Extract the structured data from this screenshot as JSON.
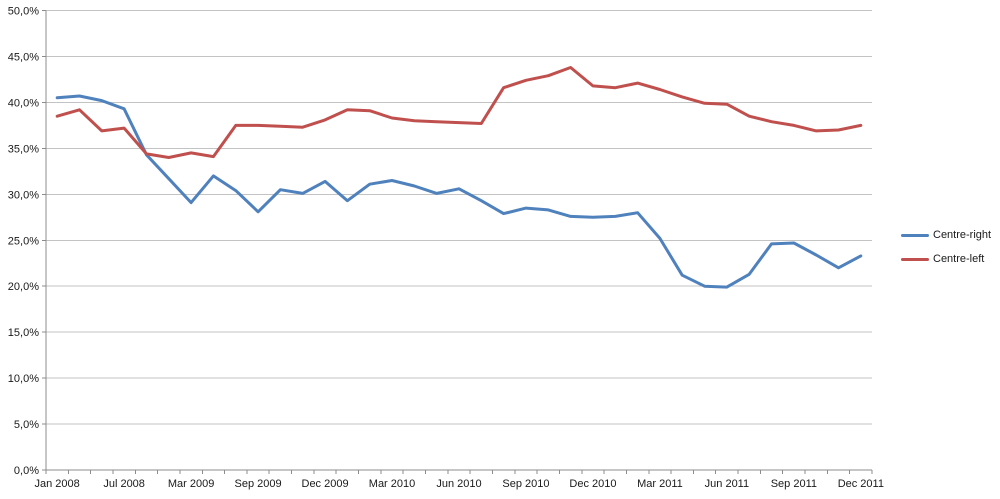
{
  "chart_data": {
    "type": "line",
    "n_points": 37,
    "label_interval": 3,
    "x_tick_labels": [
      "Jan 2008",
      "Jul 2008",
      "Mar 2009",
      "Sep 2009",
      "Dec 2009",
      "Mar 2010",
      "Jun 2010",
      "Sep 2010",
      "Dec 2010",
      "Mar 2011",
      "Jun 2011",
      "Sep 2011",
      "Dec 2011"
    ],
    "y_tick_labels": [
      "0,0%",
      "5,0%",
      "10,0%",
      "15,0%",
      "20,0%",
      "25,0%",
      "30,0%",
      "35,0%",
      "40,0%",
      "45,0%",
      "50,0%"
    ],
    "ylim": [
      0,
      50
    ],
    "y_step": 5,
    "grid": true,
    "legend_position": "right",
    "series": [
      {
        "name": "Centre-right",
        "color": "#4F81BD",
        "values": [
          40.5,
          40.7,
          40.2,
          39.3,
          34.3,
          31.7,
          29.1,
          32.0,
          30.4,
          28.1,
          30.5,
          30.1,
          31.4,
          29.3,
          31.1,
          31.5,
          30.9,
          30.1,
          30.6,
          29.3,
          27.9,
          28.5,
          28.3,
          27.6,
          27.5,
          27.6,
          28.0,
          25.2,
          21.2,
          20.0,
          19.9,
          21.3,
          24.6,
          24.7,
          23.4,
          22.0,
          23.3
        ]
      },
      {
        "name": "Centre-left",
        "color": "#C0504D",
        "values": [
          38.5,
          39.2,
          36.9,
          37.2,
          34.4,
          34.0,
          34.5,
          34.1,
          37.5,
          37.5,
          37.4,
          37.3,
          38.1,
          39.2,
          39.1,
          38.3,
          38.0,
          37.9,
          37.8,
          37.7,
          41.6,
          42.4,
          42.9,
          43.8,
          41.8,
          41.6,
          42.1,
          41.4,
          40.6,
          39.9,
          39.8,
          38.5,
          37.9,
          37.5,
          36.9,
          37.0,
          37.5
        ]
      }
    ]
  },
  "colors": {
    "gridline": "#C3C3C3",
    "axis": "#8C8C8C",
    "tick_text": "#1a1a1a",
    "background": "#FFFFFF"
  },
  "legend": {
    "items": [
      {
        "label": "Centre-right"
      },
      {
        "label": "Centre-left"
      }
    ]
  }
}
